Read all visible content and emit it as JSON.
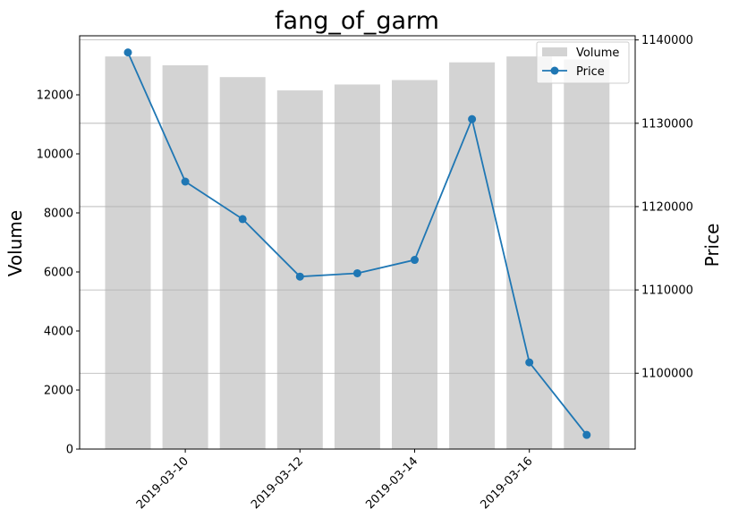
{
  "chart_data": {
    "type": "bar+line",
    "title": "fang_of_garm",
    "x": [
      "2019-03-09",
      "2019-03-10",
      "2019-03-11",
      "2019-03-12",
      "2019-03-13",
      "2019-03-14",
      "2019-03-15",
      "2019-03-16",
      "2019-03-17"
    ],
    "x_tick_labels": [
      "2019-03-10",
      "2019-03-12",
      "2019-03-14",
      "2019-03-16"
    ],
    "series": [
      {
        "name": "Volume",
        "type": "bar",
        "axis": "left",
        "color": "#d3d3d3",
        "values": [
          13300,
          13000,
          12600,
          12150,
          12350,
          12500,
          13100,
          13300,
          13200
        ]
      },
      {
        "name": "Price",
        "type": "line",
        "axis": "right",
        "color": "#1f77b4",
        "values": [
          1138500,
          1123000,
          1118500,
          1111600,
          1112000,
          1113600,
          1130500,
          1101300,
          1092600
        ]
      }
    ],
    "ylabel_left": "Volume",
    "ylabel_right": "Price",
    "ylim_left": [
      0,
      14000
    ],
    "yticks_left": [
      0,
      2000,
      4000,
      6000,
      8000,
      10000,
      12000
    ],
    "ylim_right": [
      1090900,
      1140500
    ],
    "yticks_right": [
      1100000,
      1110000,
      1120000,
      1130000,
      1140000
    ],
    "grid": "right-axis horizontal",
    "legend": {
      "placement": "top-right",
      "entries": [
        "Volume",
        "Price"
      ]
    }
  }
}
